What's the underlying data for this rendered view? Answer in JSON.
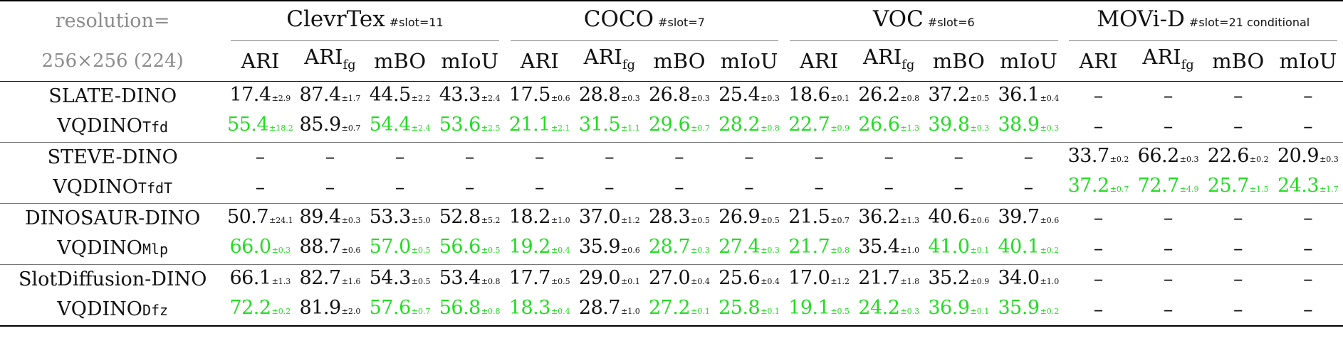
{
  "colors": {
    "highlight": "#22dd22",
    "header_gray": "#8c8c8c"
  },
  "header": {
    "res_line1": "resolution=",
    "res_line2": "256×256 (224)",
    "datasets": [
      {
        "name": "ClevrTex",
        "slot": "#slot=11"
      },
      {
        "name": "COCO",
        "slot": "#slot=7"
      },
      {
        "name": "VOC",
        "slot": "#slot=6"
      },
      {
        "name": "MOVi-D",
        "slot": "#slot=21 conditional"
      }
    ],
    "metrics": [
      "ARI",
      "ARI",
      "mBO",
      "mIoU"
    ],
    "metric_sub": "fg"
  },
  "dash": "–",
  "rows": [
    {
      "method": "SLATE-DINO",
      "cells": [
        {
          "v": "17.4",
          "s": "±2.9",
          "hl": false
        },
        {
          "v": "87.4",
          "s": "±1.7",
          "hl": false
        },
        {
          "v": "44.5",
          "s": "±2.2",
          "hl": false
        },
        {
          "v": "43.3",
          "s": "±2.4",
          "hl": false
        },
        {
          "v": "17.5",
          "s": "±0.6",
          "hl": false
        },
        {
          "v": "28.8",
          "s": "±0.3",
          "hl": false
        },
        {
          "v": "26.8",
          "s": "±0.3",
          "hl": false
        },
        {
          "v": "25.4",
          "s": "±0.3",
          "hl": false
        },
        {
          "v": "18.6",
          "s": "±0.1",
          "hl": false
        },
        {
          "v": "26.2",
          "s": "±0.8",
          "hl": false
        },
        {
          "v": "37.2",
          "s": "±0.5",
          "hl": false
        },
        {
          "v": "36.1",
          "s": "±0.4",
          "hl": false
        },
        null,
        null,
        null,
        null
      ]
    },
    {
      "method": "VQDINO",
      "suffix": "Tfd",
      "cells": [
        {
          "v": "55.4",
          "s": "±18.2",
          "hl": true
        },
        {
          "v": "85.9",
          "s": "±0.7",
          "hl": false
        },
        {
          "v": "54.4",
          "s": "±2.4",
          "hl": true
        },
        {
          "v": "53.6",
          "s": "±2.5",
          "hl": true
        },
        {
          "v": "21.1",
          "s": "±2.1",
          "hl": true
        },
        {
          "v": "31.5",
          "s": "±1.1",
          "hl": true
        },
        {
          "v": "29.6",
          "s": "±0.7",
          "hl": true
        },
        {
          "v": "28.2",
          "s": "±0.8",
          "hl": true
        },
        {
          "v": "22.7",
          "s": "±0.9",
          "hl": true
        },
        {
          "v": "26.6",
          "s": "±1.3",
          "hl": true
        },
        {
          "v": "39.8",
          "s": "±0.3",
          "hl": true
        },
        {
          "v": "38.9",
          "s": "±0.3",
          "hl": true
        },
        null,
        null,
        null,
        null
      ]
    },
    {
      "method": "STEVE-DINO",
      "cells": [
        null,
        null,
        null,
        null,
        null,
        null,
        null,
        null,
        null,
        null,
        null,
        null,
        {
          "v": "33.7",
          "s": "±0.2",
          "hl": false
        },
        {
          "v": "66.2",
          "s": "±0.3",
          "hl": false
        },
        {
          "v": "22.6",
          "s": "±0.2",
          "hl": false
        },
        {
          "v": "20.9",
          "s": "±0.3",
          "hl": false
        }
      ]
    },
    {
      "method": "VQDINO",
      "suffix": "TfdT",
      "cells": [
        null,
        null,
        null,
        null,
        null,
        null,
        null,
        null,
        null,
        null,
        null,
        null,
        {
          "v": "37.2",
          "s": "±0.7",
          "hl": true
        },
        {
          "v": "72.7",
          "s": "±4.9",
          "hl": true
        },
        {
          "v": "25.7",
          "s": "±1.5",
          "hl": true
        },
        {
          "v": "24.3",
          "s": "±1.7",
          "hl": true
        }
      ]
    },
    {
      "method": "DINOSAUR-DINO",
      "cells": [
        {
          "v": "50.7",
          "s": "±24.1",
          "hl": false
        },
        {
          "v": "89.4",
          "s": "±0.3",
          "hl": false
        },
        {
          "v": "53.3",
          "s": "±5.0",
          "hl": false
        },
        {
          "v": "52.8",
          "s": "±5.2",
          "hl": false
        },
        {
          "v": "18.2",
          "s": "±1.0",
          "hl": false
        },
        {
          "v": "37.0",
          "s": "±1.2",
          "hl": false
        },
        {
          "v": "28.3",
          "s": "±0.5",
          "hl": false
        },
        {
          "v": "26.9",
          "s": "±0.5",
          "hl": false
        },
        {
          "v": "21.5",
          "s": "±0.7",
          "hl": false
        },
        {
          "v": "36.2",
          "s": "±1.3",
          "hl": false
        },
        {
          "v": "40.6",
          "s": "±0.6",
          "hl": false
        },
        {
          "v": "39.7",
          "s": "±0.6",
          "hl": false
        },
        null,
        null,
        null,
        null
      ]
    },
    {
      "method": "VQDINO",
      "suffix": "Mlp",
      "cells": [
        {
          "v": "66.0",
          "s": "±0.3",
          "hl": true
        },
        {
          "v": "88.7",
          "s": "±0.6",
          "hl": false
        },
        {
          "v": "57.0",
          "s": "±0.5",
          "hl": true
        },
        {
          "v": "56.6",
          "s": "±0.5",
          "hl": true
        },
        {
          "v": "19.2",
          "s": "±0.4",
          "hl": true
        },
        {
          "v": "35.9",
          "s": "±0.6",
          "hl": false
        },
        {
          "v": "28.7",
          "s": "±0.3",
          "hl": true
        },
        {
          "v": "27.4",
          "s": "±0.3",
          "hl": true
        },
        {
          "v": "21.7",
          "s": "±0.8",
          "hl": true
        },
        {
          "v": "35.4",
          "s": "±1.0",
          "hl": false
        },
        {
          "v": "41.0",
          "s": "±0.1",
          "hl": true
        },
        {
          "v": "40.1",
          "s": "±0.2",
          "hl": true
        },
        null,
        null,
        null,
        null
      ]
    },
    {
      "method": "SlotDiffusion-DINO",
      "cells": [
        {
          "v": "66.1",
          "s": "±1.3",
          "hl": false
        },
        {
          "v": "82.7",
          "s": "±1.6",
          "hl": false
        },
        {
          "v": "54.3",
          "s": "±0.5",
          "hl": false
        },
        {
          "v": "53.4",
          "s": "±0.8",
          "hl": false
        },
        {
          "v": "17.7",
          "s": "±0.5",
          "hl": false
        },
        {
          "v": "29.0",
          "s": "±0.1",
          "hl": false
        },
        {
          "v": "27.0",
          "s": "±0.4",
          "hl": false
        },
        {
          "v": "25.6",
          "s": "±0.4",
          "hl": false
        },
        {
          "v": "17.0",
          "s": "±1.2",
          "hl": false
        },
        {
          "v": "21.7",
          "s": "±1.8",
          "hl": false
        },
        {
          "v": "35.2",
          "s": "±0.9",
          "hl": false
        },
        {
          "v": "34.0",
          "s": "±1.0",
          "hl": false
        },
        null,
        null,
        null,
        null
      ]
    },
    {
      "method": "VQDINO",
      "suffix": "Dfz",
      "cells": [
        {
          "v": "72.2",
          "s": "±0.2",
          "hl": true
        },
        {
          "v": "81.9",
          "s": "±2.0",
          "hl": false
        },
        {
          "v": "57.6",
          "s": "±0.7",
          "hl": true
        },
        {
          "v": "56.8",
          "s": "±0.8",
          "hl": true
        },
        {
          "v": "18.3",
          "s": "±0.4",
          "hl": true
        },
        {
          "v": "28.7",
          "s": "±1.0",
          "hl": false
        },
        {
          "v": "27.2",
          "s": "±0.1",
          "hl": true
        },
        {
          "v": "25.8",
          "s": "±0.1",
          "hl": true
        },
        {
          "v": "19.1",
          "s": "±0.5",
          "hl": true
        },
        {
          "v": "24.2",
          "s": "±0.3",
          "hl": true
        },
        {
          "v": "36.9",
          "s": "±0.1",
          "hl": true
        },
        {
          "v": "35.9",
          "s": "±0.2",
          "hl": true
        },
        null,
        null,
        null,
        null
      ]
    }
  ]
}
